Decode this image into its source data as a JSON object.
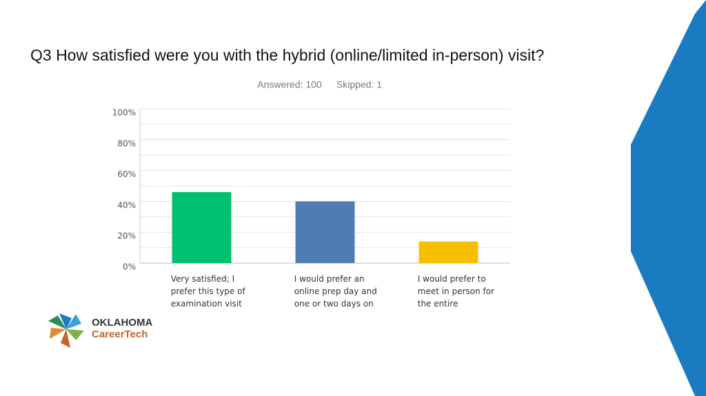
{
  "title": "Q3 How satisfied were you with the hybrid (online/limited in-person) visit?",
  "chart_data": {
    "type": "bar",
    "subtitle": [
      "Answered: 100",
      "Skipped: 1"
    ],
    "categories": [
      "Very satisfied; I prefer this type of examination visit",
      "I would prefer an online prep day and one or two days on",
      "I would prefer to meet in person for the entire"
    ],
    "values": [
      46,
      40,
      14
    ],
    "colors": [
      "#00bf6f",
      "#507cb6",
      "#f6bf00"
    ],
    "ylim": [
      0,
      100
    ],
    "yticks": [
      {
        "value": 0,
        "label": "0%"
      },
      {
        "value": 20,
        "label": "20%"
      },
      {
        "value": 40,
        "label": "40%"
      },
      {
        "value": 60,
        "label": "60%"
      },
      {
        "value": 80,
        "label": "80%"
      },
      {
        "value": 100,
        "label": "100%"
      }
    ],
    "minor_yticks": [
      10,
      30,
      50,
      70,
      90
    ],
    "grid": true
  },
  "logo": {
    "line1": "OKLAHOMA",
    "line2": "CareerTech"
  }
}
